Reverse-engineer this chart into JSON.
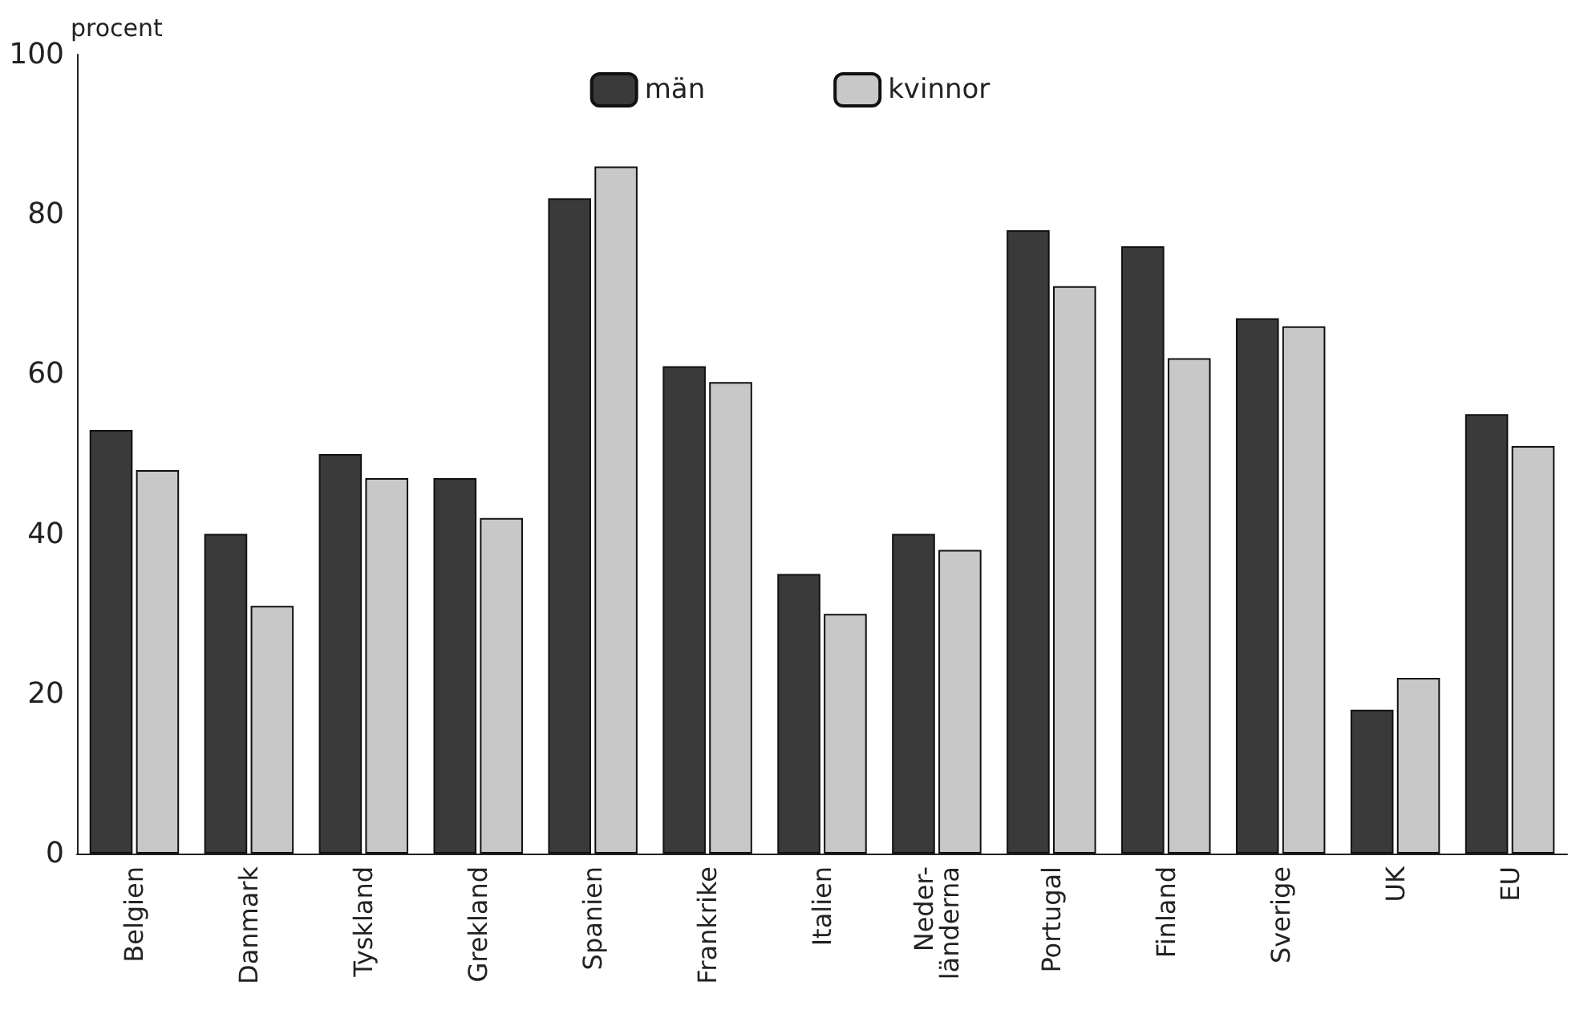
{
  "chart_data": {
    "type": "bar",
    "ylabel": "procent",
    "categories": [
      "Belgien",
      "Danmark",
      "Tyskland",
      "Grekland",
      "Spanien",
      "Frankrike",
      "Italien",
      "Neder-\nländerna",
      "Portugal",
      "Finland",
      "Sverige",
      "UK",
      "EU"
    ],
    "series": [
      {
        "name": "män",
        "color": "#3a3a3a",
        "values": [
          53,
          40,
          50,
          47,
          82,
          61,
          35,
          40,
          78,
          76,
          67,
          18,
          55
        ]
      },
      {
        "name": "kvinnor",
        "color": "#c8c8c8",
        "values": [
          48,
          31,
          47,
          42,
          86,
          59,
          30,
          38,
          71,
          62,
          66,
          22,
          51
        ]
      }
    ],
    "ylim": [
      0,
      100
    ],
    "yticks": [
      0,
      20,
      40,
      60,
      80,
      100
    ],
    "grid": false,
    "legend": "top"
  }
}
